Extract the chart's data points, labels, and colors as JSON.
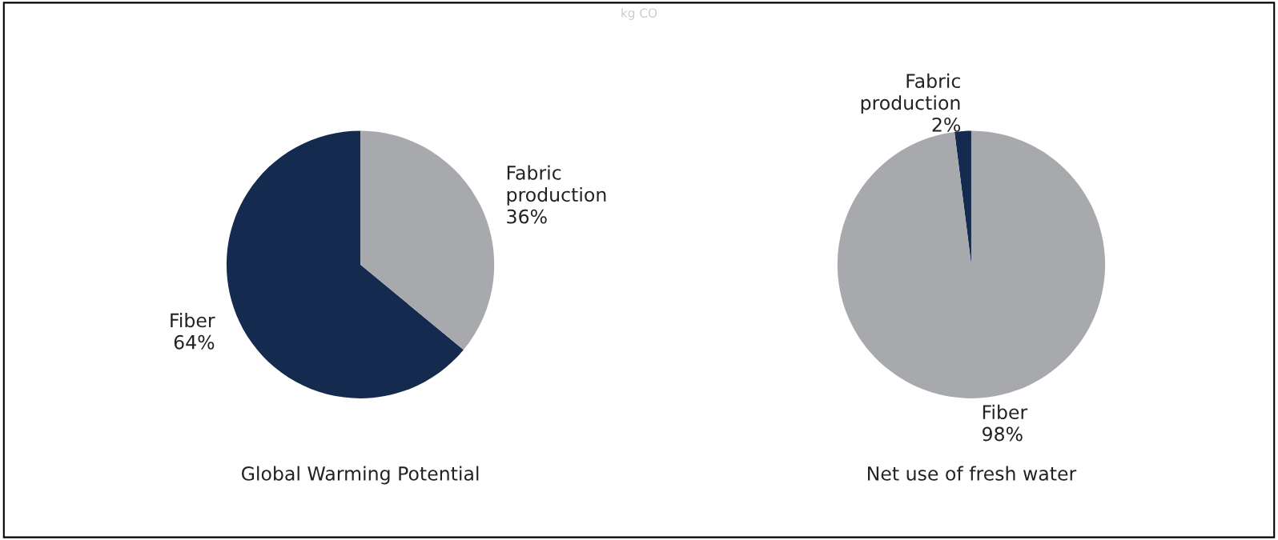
{
  "chart_data": [
    {
      "type": "pie",
      "title": "Global Warming Potential",
      "categories": [
        "Fiber",
        "Fabric production"
      ],
      "values": [
        64,
        36
      ],
      "value_labels": [
        "64%",
        "36%"
      ],
      "colors": [
        "#142a4e",
        "#a7a9ac"
      ],
      "annotations": [
        "kg CO"
      ]
    },
    {
      "type": "pie",
      "title": "Net use of fresh water",
      "categories": [
        "Fabric production",
        "Fiber"
      ],
      "values": [
        2,
        98
      ],
      "value_labels": [
        "2%",
        "98%"
      ],
      "colors": [
        "#142a4e",
        "#a7a9ac"
      ]
    }
  ]
}
